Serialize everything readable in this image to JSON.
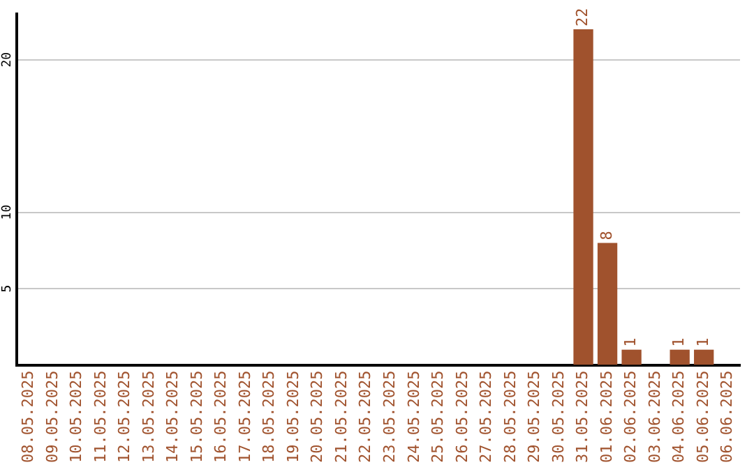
{
  "chart_data": {
    "type": "bar",
    "categories": [
      "08.05.2025",
      "09.05.2025",
      "10.05.2025",
      "11.05.2025",
      "12.05.2025",
      "13.05.2025",
      "14.05.2025",
      "15.05.2025",
      "16.05.2025",
      "17.05.2025",
      "18.05.2025",
      "19.05.2025",
      "20.05.2025",
      "21.05.2025",
      "22.05.2025",
      "23.05.2025",
      "24.05.2025",
      "25.05.2025",
      "26.05.2025",
      "27.05.2025",
      "28.05.2025",
      "29.05.2025",
      "30.05.2025",
      "31.05.2025",
      "01.06.2025",
      "02.06.2025",
      "03.06.2025",
      "04.06.2025",
      "05.06.2025",
      "06.06.2025"
    ],
    "values": [
      null,
      null,
      null,
      null,
      null,
      null,
      null,
      null,
      null,
      null,
      null,
      null,
      null,
      null,
      null,
      null,
      null,
      null,
      null,
      null,
      null,
      null,
      null,
      22,
      8,
      1,
      null,
      1,
      1,
      null
    ],
    "color": "#a0522d",
    "ylim": [
      0,
      23
    ],
    "yticks": [
      5,
      10,
      20
    ],
    "grid": "y",
    "legend": false,
    "data_labels": true
  }
}
